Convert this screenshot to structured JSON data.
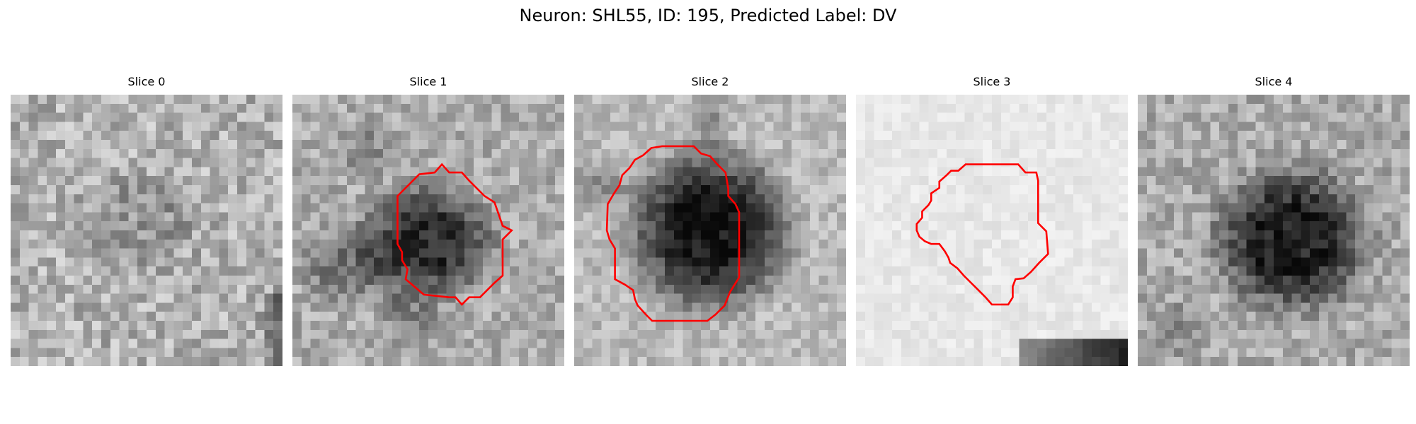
{
  "figure": {
    "title": "Neuron: SHL55, ID: 195, Predicted Label: DV",
    "contour_color": "#ff0000"
  },
  "slices": [
    {
      "label": "Slice 0"
    },
    {
      "label": "Slice 1"
    },
    {
      "label": "Slice 2"
    },
    {
      "label": "Slice 3"
    },
    {
      "label": "Slice 4"
    }
  ]
}
